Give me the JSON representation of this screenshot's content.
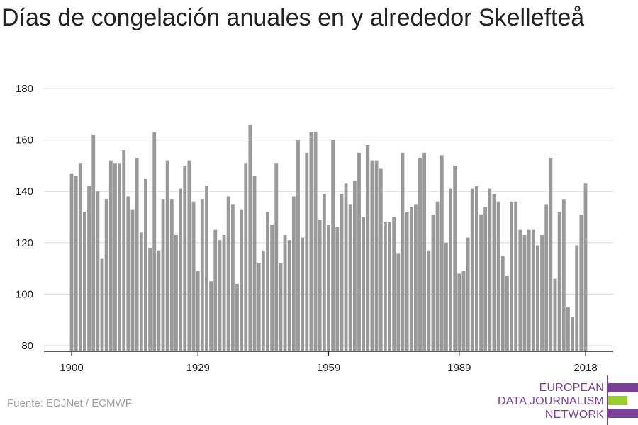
{
  "title": "Días de congelación anuales en y alrededor Skellefteå",
  "source": "Fuente: EDJNet / ECMWF",
  "logo": {
    "lines": [
      "EUROPEAN",
      "DATA JOURNALISM",
      "NETWORK"
    ],
    "colors": {
      "text": "#7b3f98",
      "bar_top": "#7b3f98",
      "bar_middle": "#9acd32",
      "bar_bottom": "#7b3f98"
    }
  },
  "colors": {
    "bar": "#999999",
    "grid": "#dddddd",
    "axis": "#222222",
    "text": "#222222"
  },
  "chart_data": {
    "type": "bar",
    "title": "Días de congelación anuales en y alrededor Skellefteå",
    "xlabel": "",
    "ylabel": "",
    "ylim": [
      80,
      180
    ],
    "xlim": [
      1900,
      2018
    ],
    "grid": "horizontal",
    "xticks": [
      1900,
      1929,
      1959,
      1989,
      2018
    ],
    "yticks": [
      80,
      100,
      120,
      140,
      160,
      180
    ],
    "x": [
      1900,
      1901,
      1902,
      1903,
      1904,
      1905,
      1906,
      1907,
      1908,
      1909,
      1910,
      1911,
      1912,
      1913,
      1914,
      1915,
      1916,
      1917,
      1918,
      1919,
      1920,
      1921,
      1922,
      1923,
      1924,
      1925,
      1926,
      1927,
      1928,
      1929,
      1930,
      1931,
      1932,
      1933,
      1934,
      1935,
      1936,
      1937,
      1938,
      1939,
      1940,
      1941,
      1942,
      1943,
      1944,
      1945,
      1946,
      1947,
      1948,
      1949,
      1950,
      1951,
      1952,
      1953,
      1954,
      1955,
      1956,
      1957,
      1958,
      1959,
      1960,
      1961,
      1962,
      1963,
      1964,
      1965,
      1966,
      1967,
      1968,
      1969,
      1970,
      1971,
      1972,
      1973,
      1974,
      1975,
      1976,
      1977,
      1978,
      1979,
      1980,
      1981,
      1982,
      1983,
      1984,
      1985,
      1986,
      1987,
      1988,
      1989,
      1990,
      1991,
      1992,
      1993,
      1994,
      1995,
      1996,
      1997,
      1998,
      1999,
      2000,
      2001,
      2002,
      2003,
      2004,
      2005,
      2006,
      2007,
      2008,
      2009,
      2010,
      2011,
      2012,
      2013,
      2014,
      2015,
      2016,
      2017,
      2018
    ],
    "values": [
      147,
      146,
      151,
      132,
      142,
      162,
      140,
      114,
      137,
      152,
      151,
      151,
      156,
      138,
      133,
      153,
      124,
      145,
      118,
      163,
      117,
      137,
      152,
      137,
      123,
      141,
      150,
      152,
      136,
      109,
      137,
      142,
      105,
      125,
      121,
      123,
      138,
      135,
      104,
      133,
      151,
      166,
      146,
      112,
      117,
      132,
      127,
      151,
      112,
      123,
      121,
      138,
      160,
      122,
      155,
      163,
      163,
      129,
      139,
      127,
      160,
      126,
      139,
      143,
      135,
      144,
      155,
      130,
      158,
      152,
      152,
      149,
      128,
      128,
      130,
      116,
      155,
      132,
      134,
      135,
      153,
      155,
      117,
      131,
      136,
      154,
      120,
      141,
      150,
      108,
      109,
      122,
      141,
      142,
      131,
      134,
      141,
      139,
      136,
      115,
      107,
      136,
      136,
      125,
      123,
      125,
      125,
      119,
      123,
      135,
      153,
      106,
      132,
      137,
      95,
      91,
      119,
      131,
      143
    ]
  }
}
